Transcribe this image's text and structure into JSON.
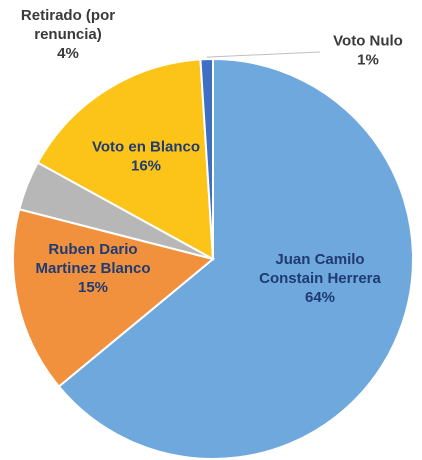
{
  "chart_data": {
    "type": "pie",
    "title": "",
    "start_angle_deg": 0,
    "direction": "clockwise",
    "slices": [
      {
        "label_lines": [
          "Juan Camilo",
          "Constain Herrera"
        ],
        "value": 64,
        "pct_label": "64%",
        "color": "#6fa8dc",
        "label_color": "#1f3b73",
        "label_pos": "inside"
      },
      {
        "label_lines": [
          "Ruben Dario",
          "Martinez Blanco"
        ],
        "value": 15,
        "pct_label": "15%",
        "color": "#f1913d",
        "label_color": "#1f3b73",
        "label_pos": "inside"
      },
      {
        "label_lines": [
          "Retirado (por",
          "renuncia)"
        ],
        "value": 4,
        "pct_label": "4%",
        "color": "#b7b7b7",
        "label_color": "#3a3a3a",
        "label_pos": "outside-top-left"
      },
      {
        "label_lines": [
          "Voto en Blanco"
        ],
        "value": 16,
        "pct_label": "16%",
        "color": "#fcc419",
        "label_color": "#1f3b73",
        "label_pos": "inside"
      },
      {
        "label_lines": [
          "Voto Nulo"
        ],
        "value": 1,
        "pct_label": "1%",
        "color": "#3d6fc2",
        "label_color": "#3a3a3a",
        "label_pos": "outside-top-right"
      }
    ]
  }
}
